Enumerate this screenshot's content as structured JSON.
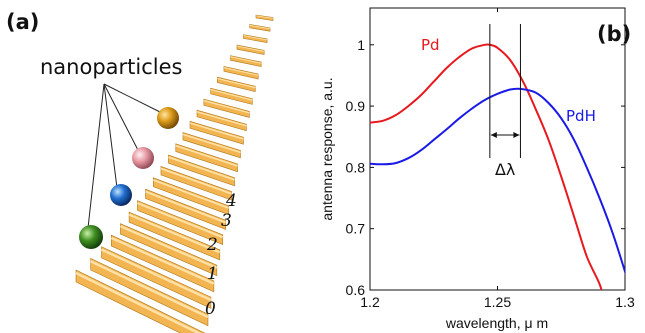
{
  "panel_a": {
    "label": "(a)",
    "title": "nanoparticles",
    "indices": [
      "0",
      "1",
      "2",
      "3",
      "4"
    ],
    "particles": [
      {
        "name": "green-sphere",
        "color": "#3f8f22"
      },
      {
        "name": "blue-sphere",
        "color": "#1f6fd0"
      },
      {
        "name": "pink-sphere",
        "color": "#e89aa4"
      },
      {
        "name": "orange-sphere",
        "color": "#dc9a18"
      }
    ],
    "rod_color": "#f3b552"
  },
  "panel_b": {
    "label": "(b)",
    "delta_label": "Δλ",
    "chart_data": {
      "type": "line",
      "xlabel": "wavelength, μ m",
      "ylabel": "antenna response, a.u.",
      "xlim": [
        1.2,
        1.3
      ],
      "ylim": [
        0.6,
        1.06
      ],
      "xticks": [
        "1.2",
        "1.25",
        "1.3"
      ],
      "yticks": [
        "0.6",
        "0.7",
        "0.8",
        "0.9",
        "1"
      ],
      "grid": false,
      "series": [
        {
          "name": "Pd",
          "color": "#e8191e",
          "x": [
            1.2,
            1.205,
            1.21,
            1.215,
            1.22,
            1.225,
            1.23,
            1.235,
            1.24,
            1.245,
            1.247,
            1.25,
            1.255,
            1.26,
            1.265,
            1.27,
            1.275,
            1.28,
            1.285,
            1.29,
            1.292
          ],
          "y": [
            0.873,
            0.876,
            0.885,
            0.9,
            0.918,
            0.94,
            0.962,
            0.98,
            0.994,
            1.0,
            1.0,
            0.995,
            0.975,
            0.94,
            0.895,
            0.845,
            0.785,
            0.72,
            0.655,
            0.61,
            0.58
          ]
        },
        {
          "name": "PdH",
          "color": "#1a1ae6",
          "x": [
            1.2,
            1.205,
            1.21,
            1.215,
            1.22,
            1.225,
            1.23,
            1.235,
            1.24,
            1.245,
            1.25,
            1.255,
            1.259,
            1.265,
            1.27,
            1.275,
            1.28,
            1.285,
            1.29,
            1.295,
            1.3,
            1.302
          ],
          "y": [
            0.806,
            0.805,
            0.807,
            0.815,
            0.828,
            0.845,
            0.862,
            0.88,
            0.896,
            0.91,
            0.92,
            0.927,
            0.928,
            0.922,
            0.905,
            0.88,
            0.845,
            0.8,
            0.75,
            0.695,
            0.63,
            0.6
          ]
        }
      ],
      "markers": [
        1.247,
        1.259
      ]
    }
  }
}
